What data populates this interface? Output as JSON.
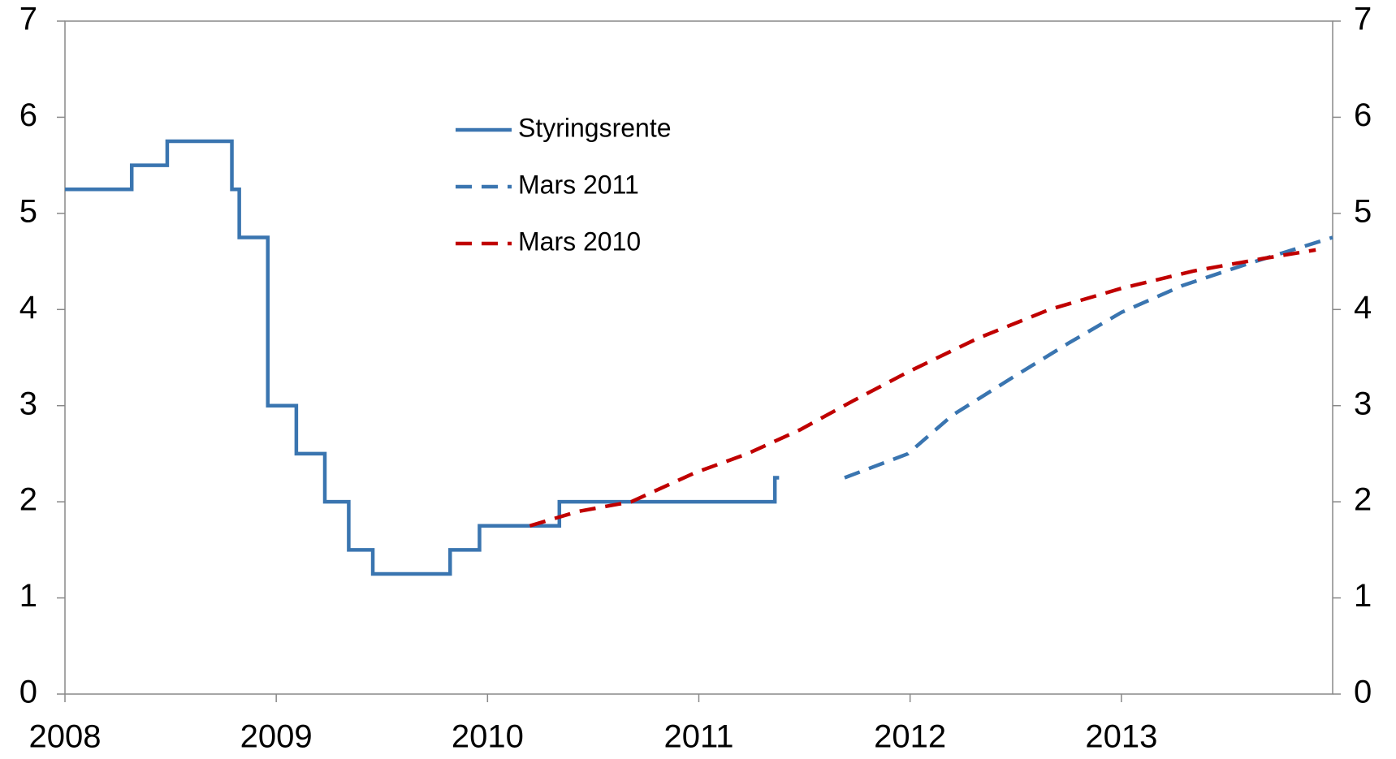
{
  "chart_data": {
    "type": "line",
    "xlim": [
      2008,
      2014
    ],
    "xticks": [
      2008,
      2009,
      2010,
      2011,
      2012,
      2013
    ],
    "ylim": [
      0,
      7
    ],
    "yticks": [
      0,
      1,
      2,
      3,
      4,
      5,
      6,
      7
    ],
    "y2lim": [
      0,
      7
    ],
    "y2ticks": [
      0,
      1,
      2,
      3,
      4,
      5,
      6,
      7
    ],
    "series": [
      {
        "name": "Styringsrente",
        "color": "#3a75b0",
        "linestyle": "solid",
        "drawstyle": "steps-post",
        "x": [
          2008.0,
          2008.316,
          2008.484,
          2008.79,
          2008.825,
          2008.96,
          2009.095,
          2009.23,
          2009.343,
          2009.457,
          2009.823,
          2009.962,
          2010.34,
          2011.36,
          2011.38
        ],
        "values": [
          5.25,
          5.5,
          5.75,
          5.25,
          4.75,
          3.0,
          2.5,
          2.0,
          1.5,
          1.25,
          1.5,
          1.75,
          2.0,
          2.25,
          2.25
        ]
      },
      {
        "name": "Mars 2011",
        "color": "#3a75b0",
        "linestyle": "dashed",
        "drawstyle": "default",
        "x": [
          2011.69,
          2011.99,
          2012.2,
          2012.49,
          2012.75,
          2013.0,
          2013.29,
          2013.59,
          2014.0
        ],
        "values": [
          2.25,
          2.5,
          2.9,
          3.3,
          3.65,
          3.97,
          4.25,
          4.47,
          4.75
        ]
      },
      {
        "name": "Mars 2010",
        "color": "#c00000",
        "linestyle": "dashed",
        "drawstyle": "default",
        "x": [
          2010.2,
          2010.43,
          2010.68,
          2010.98,
          2011.23,
          2011.48,
          2011.73,
          2011.99,
          2012.32,
          2012.66,
          2013.0,
          2013.34,
          2013.67,
          2013.92
        ],
        "values": [
          1.75,
          1.9,
          2.0,
          2.3,
          2.5,
          2.75,
          3.05,
          3.35,
          3.7,
          4.0,
          4.22,
          4.4,
          4.53,
          4.62
        ]
      }
    ]
  }
}
